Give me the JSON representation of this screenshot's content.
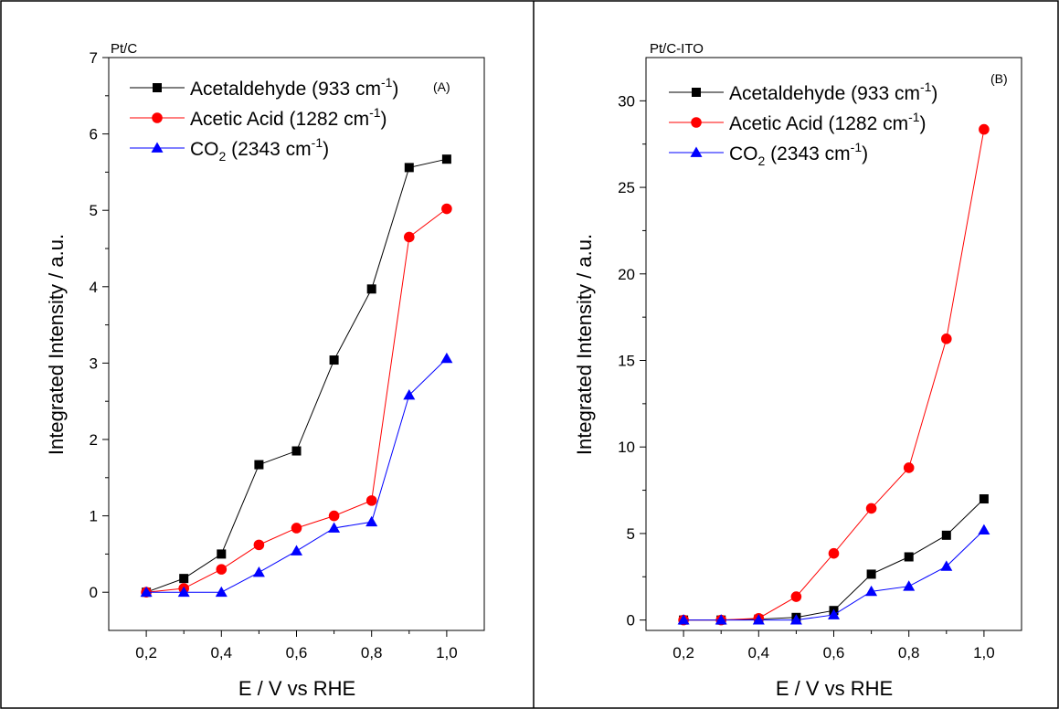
{
  "chart_data": [
    {
      "type": "line",
      "panel_title": "Pt/C",
      "panel_tag": "(A)",
      "xlabel": "E / V vs RHE",
      "ylabel": "Integrated Intensity / a.u.",
      "xlim": [
        0.1,
        1.1
      ],
      "ylim": [
        -0.5,
        7
      ],
      "xticks": [
        "0,2",
        "0,4",
        "0,6",
        "0,8",
        "1,0"
      ],
      "yticks": [
        "0",
        "1",
        "2",
        "3",
        "4",
        "5",
        "6",
        "7"
      ],
      "x": [
        0.2,
        0.3,
        0.4,
        0.5,
        0.6,
        0.7,
        0.8,
        0.9,
        1.0
      ],
      "legend_position": "top-left",
      "series": [
        {
          "name": "Acetaldehyde (933 cm",
          "name_sup": "-1",
          "name_end": ")",
          "marker": "square",
          "color": "#000000",
          "values": [
            0.0,
            0.18,
            0.5,
            1.67,
            1.85,
            3.04,
            3.97,
            5.56,
            5.67
          ]
        },
        {
          "name": "Acetic Acid (1282 cm",
          "name_sup": "-1",
          "name_end": ")",
          "marker": "circle",
          "color": "#ff0000",
          "values": [
            0.0,
            0.05,
            0.3,
            0.62,
            0.84,
            1.0,
            1.2,
            4.65,
            5.02
          ]
        },
        {
          "name_pre": "CO",
          "name_sub": "2",
          "name": " (2343 cm",
          "name_sup": "-1",
          "name_end": ")",
          "marker": "triangle",
          "color": "#0000ff",
          "values": [
            0.0,
            0.0,
            0.0,
            0.26,
            0.54,
            0.84,
            0.92,
            2.58,
            3.06
          ]
        }
      ]
    },
    {
      "type": "line",
      "panel_title": "Pt/C-ITO",
      "panel_tag": "(B)",
      "xlabel": "E / V vs RHE",
      "ylabel": "Integrated Intensity / a.u.",
      "xlim": [
        0.1,
        1.1
      ],
      "ylim": [
        -0.6,
        32.5
      ],
      "xticks": [
        "0,2",
        "0,4",
        "0,6",
        "0,8",
        "1,0"
      ],
      "yticks": [
        "0",
        "5",
        "10",
        "15",
        "20",
        "25",
        "30"
      ],
      "x": [
        0.2,
        0.3,
        0.4,
        0.5,
        0.6,
        0.7,
        0.8,
        0.9,
        1.0
      ],
      "legend_position": "top-left",
      "series": [
        {
          "name": "Acetaldehyde (933 cm",
          "name_sup": "-1",
          "name_end": ")",
          "marker": "square",
          "color": "#000000",
          "values": [
            0.0,
            0.0,
            0.05,
            0.15,
            0.55,
            2.65,
            3.65,
            4.9,
            7.0
          ]
        },
        {
          "name": "Acetic Acid (1282 cm",
          "name_sup": "-1",
          "name_end": ")",
          "marker": "circle",
          "color": "#ff0000",
          "values": [
            0.0,
            0.0,
            0.1,
            1.35,
            3.85,
            6.45,
            8.8,
            16.25,
            28.35
          ]
        },
        {
          "name_pre": "CO",
          "name_sub": "2",
          "name": " (2343 cm",
          "name_sup": "-1",
          "name_end": ")",
          "marker": "triangle",
          "color": "#0000ff",
          "values": [
            0.0,
            0.0,
            0.0,
            0.0,
            0.3,
            1.65,
            1.95,
            3.1,
            5.2
          ]
        }
      ]
    }
  ]
}
